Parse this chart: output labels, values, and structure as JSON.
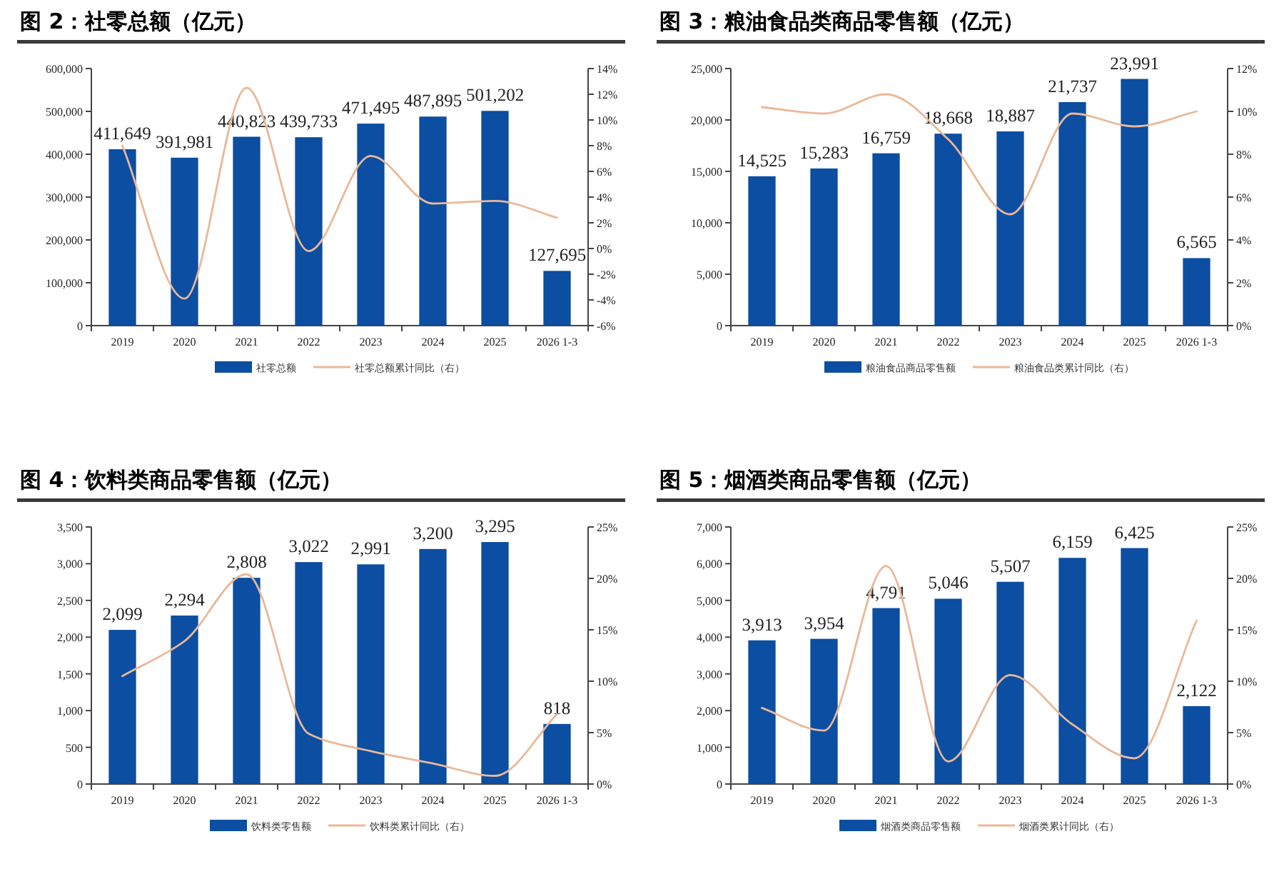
{
  "chart_data": [
    {
      "type": "bar",
      "title": "图 2：社零总额（亿元）",
      "categories": [
        "2019",
        "2020",
        "2021",
        "2022",
        "2023",
        "2024",
        "2025",
        "2026 1-3"
      ],
      "series": [
        {
          "name": "社零总额",
          "type": "bar",
          "color": "#0b4ea2",
          "values": [
            411649,
            391981,
            440823,
            439733,
            471495,
            487895,
            501202,
            127695
          ],
          "value_labels": [
            "411,649",
            "391,981",
            "440,823",
            "439,733",
            "471,495",
            "487,895",
            "501,202",
            "127,695"
          ]
        },
        {
          "name": "社零总额累计同比（右）",
          "type": "line",
          "axis": "y2",
          "color": "#e9b898",
          "values": [
            8.0,
            -3.9,
            12.5,
            -0.2,
            7.2,
            3.5,
            3.7,
            2.4
          ]
        }
      ],
      "ylim": [
        0,
        600000
      ],
      "yticks": [
        {
          "value": 0,
          "label": "0"
        },
        {
          "value": 100000,
          "label": "100,000"
        },
        {
          "value": 200000,
          "label": "200,000"
        },
        {
          "value": 300000,
          "label": "300,000"
        },
        {
          "value": 400000,
          "label": "400,000"
        },
        {
          "value": 500000,
          "label": "500,000"
        },
        {
          "value": 600000,
          "label": "600,000"
        }
      ],
      "y2lim": [
        -6,
        14
      ],
      "y2ticks": [
        {
          "value": -6,
          "label": "-6%"
        },
        {
          "value": -4,
          "label": "-4%"
        },
        {
          "value": -2,
          "label": "-2%"
        },
        {
          "value": 0,
          "label": "0%"
        },
        {
          "value": 2,
          "label": "2%"
        },
        {
          "value": 4,
          "label": "4%"
        },
        {
          "value": 6,
          "label": "6%"
        },
        {
          "value": 8,
          "label": "8%"
        },
        {
          "value": 10,
          "label": "10%"
        },
        {
          "value": 12,
          "label": "12%"
        },
        {
          "value": 14,
          "label": "14%"
        }
      ],
      "legend": "bottom"
    },
    {
      "type": "bar",
      "title": "图 3：粮油食品类商品零售额（亿元）",
      "categories": [
        "2019",
        "2020",
        "2021",
        "2022",
        "2023",
        "2024",
        "2025",
        "2026 1-3"
      ],
      "series": [
        {
          "name": "粮油食品商品零售额",
          "type": "bar",
          "color": "#0b4ea2",
          "values": [
            14525,
            15283,
            16759,
            18668,
            18887,
            21737,
            23991,
            6565
          ],
          "value_labels": [
            "14,525",
            "15,283",
            "16,759",
            "18,668",
            "18,887",
            "21,737",
            "23,991",
            "6,565"
          ]
        },
        {
          "name": "粮油食品类累计同比（右）",
          "type": "line",
          "axis": "y2",
          "color": "#e9b898",
          "values": [
            10.2,
            9.9,
            10.8,
            8.7,
            5.2,
            9.9,
            9.3,
            10.0
          ]
        }
      ],
      "ylim": [
        0,
        25000
      ],
      "yticks": [
        {
          "value": 0,
          "label": "0"
        },
        {
          "value": 5000,
          "label": "5,000"
        },
        {
          "value": 10000,
          "label": "10,000"
        },
        {
          "value": 15000,
          "label": "15,000"
        },
        {
          "value": 20000,
          "label": "20,000"
        },
        {
          "value": 25000,
          "label": "25,000"
        }
      ],
      "y2lim": [
        0,
        12
      ],
      "y2ticks": [
        {
          "value": 0,
          "label": "0%"
        },
        {
          "value": 2,
          "label": "2%"
        },
        {
          "value": 4,
          "label": "4%"
        },
        {
          "value": 6,
          "label": "6%"
        },
        {
          "value": 8,
          "label": "8%"
        },
        {
          "value": 10,
          "label": "10%"
        },
        {
          "value": 12,
          "label": "12%"
        }
      ],
      "legend": "bottom"
    },
    {
      "type": "bar",
      "title": "图 4：饮料类商品零售额（亿元）",
      "categories": [
        "2019",
        "2020",
        "2021",
        "2022",
        "2023",
        "2024",
        "2025",
        "2026 1-3"
      ],
      "series": [
        {
          "name": "饮料类零售额",
          "type": "bar",
          "color": "#0b4ea2",
          "values": [
            2099,
            2294,
            2808,
            3022,
            2991,
            3200,
            3295,
            818
          ],
          "value_labels": [
            "2,099",
            "2,294",
            "2,808",
            "3,022",
            "2,991",
            "3,200",
            "3,295",
            "818"
          ]
        },
        {
          "name": "饮料类累计同比（右）",
          "type": "line",
          "axis": "y2",
          "color": "#e9b898",
          "values": [
            10.5,
            13.9,
            20.4,
            4.9,
            3.2,
            2.0,
            0.8,
            6.8
          ]
        }
      ],
      "ylim": [
        0,
        3500
      ],
      "yticks": [
        {
          "value": 0,
          "label": "0"
        },
        {
          "value": 500,
          "label": "500"
        },
        {
          "value": 1000,
          "label": "1,000"
        },
        {
          "value": 1500,
          "label": "1,500"
        },
        {
          "value": 2000,
          "label": "2,000"
        },
        {
          "value": 2500,
          "label": "2,500"
        },
        {
          "value": 3000,
          "label": "3,000"
        },
        {
          "value": 3500,
          "label": "3,500"
        }
      ],
      "y2lim": [
        0,
        25
      ],
      "y2ticks": [
        {
          "value": 0,
          "label": "0%"
        },
        {
          "value": 5,
          "label": "5%"
        },
        {
          "value": 10,
          "label": "10%"
        },
        {
          "value": 15,
          "label": "15%"
        },
        {
          "value": 20,
          "label": "20%"
        },
        {
          "value": 25,
          "label": "25%"
        }
      ],
      "legend": "bottom"
    },
    {
      "type": "bar",
      "title": "图 5：烟酒类商品零售额（亿元）",
      "categories": [
        "2019",
        "2020",
        "2021",
        "2022",
        "2023",
        "2024",
        "2025",
        "2026 1-3"
      ],
      "series": [
        {
          "name": "烟酒类商品零售额",
          "type": "bar",
          "color": "#0b4ea2",
          "values": [
            3913,
            3954,
            4791,
            5046,
            5507,
            6159,
            6425,
            2122
          ],
          "value_labels": [
            "3,913",
            "3,954",
            "4,791",
            "5,046",
            "5,507",
            "6,159",
            "6,425",
            "2,122"
          ]
        },
        {
          "name": "烟酒类累计同比（右）",
          "type": "line",
          "axis": "y2",
          "color": "#e9b898",
          "values": [
            7.4,
            5.2,
            21.2,
            2.2,
            10.6,
            5.8,
            2.5,
            15.9
          ]
        }
      ],
      "ylim": [
        0,
        7000
      ],
      "yticks": [
        {
          "value": 0,
          "label": "0"
        },
        {
          "value": 1000,
          "label": "1,000"
        },
        {
          "value": 2000,
          "label": "2,000"
        },
        {
          "value": 3000,
          "label": "3,000"
        },
        {
          "value": 4000,
          "label": "4,000"
        },
        {
          "value": 5000,
          "label": "5,000"
        },
        {
          "value": 6000,
          "label": "6,000"
        },
        {
          "value": 7000,
          "label": "7,000"
        }
      ],
      "y2lim": [
        0,
        25
      ],
      "y2ticks": [
        {
          "value": 0,
          "label": "0%"
        },
        {
          "value": 5,
          "label": "5%"
        },
        {
          "value": 10,
          "label": "10%"
        },
        {
          "value": 15,
          "label": "15%"
        },
        {
          "value": 20,
          "label": "20%"
        },
        {
          "value": 25,
          "label": "25%"
        }
      ],
      "legend": "bottom"
    }
  ]
}
